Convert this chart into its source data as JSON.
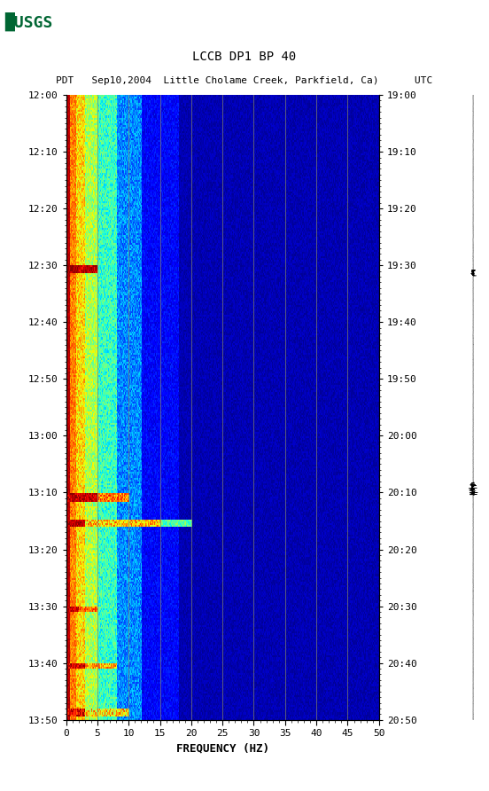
{
  "title_line1": "LCCB DP1 BP 40",
  "title_line2": "PDT   Sep10,2004  Little Cholame Creek, Parkfield, Ca)      UTC",
  "left_time_labels": [
    "12:00",
    "12:10",
    "12:20",
    "12:30",
    "12:40",
    "12:50",
    "13:00",
    "13:10",
    "13:20",
    "13:30",
    "13:40",
    "13:50"
  ],
  "right_time_labels": [
    "19:00",
    "19:10",
    "19:20",
    "19:30",
    "19:40",
    "19:50",
    "20:00",
    "20:10",
    "20:20",
    "20:30",
    "20:40",
    "20:50"
  ],
  "freq_min": 0,
  "freq_max": 50,
  "freq_ticks": [
    0,
    5,
    10,
    15,
    20,
    25,
    30,
    35,
    40,
    45,
    50
  ],
  "freq_label": "FREQUENCY (HZ)",
  "background_color": "#ffffff",
  "grid_color": "#888866",
  "grid_freqs": [
    5,
    10,
    15,
    20,
    25,
    30,
    35,
    40,
    45
  ],
  "usgs_logo_color": "#006633",
  "figwidth": 5.52,
  "figheight": 8.92,
  "dpi": 100
}
